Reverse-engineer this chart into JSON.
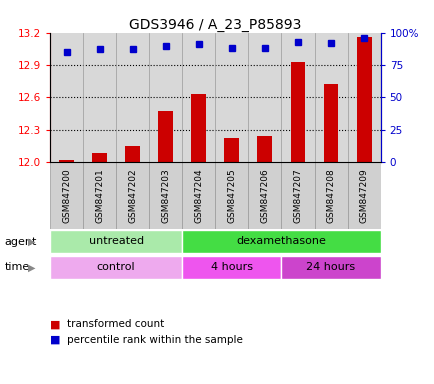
{
  "title": "GDS3946 / A_23_P85893",
  "samples": [
    "GSM847200",
    "GSM847201",
    "GSM847202",
    "GSM847203",
    "GSM847204",
    "GSM847205",
    "GSM847206",
    "GSM847207",
    "GSM847208",
    "GSM847209"
  ],
  "bar_values": [
    12.02,
    12.08,
    12.15,
    12.47,
    12.63,
    12.22,
    12.24,
    12.93,
    12.72,
    13.16
  ],
  "percentile_values": [
    85,
    87,
    87,
    90,
    91,
    88,
    88,
    93,
    92,
    96
  ],
  "bar_color": "#cc0000",
  "percentile_color": "#0000cc",
  "ylim_left": [
    12.0,
    13.2
  ],
  "ylim_right": [
    0,
    100
  ],
  "yticks_left": [
    12.0,
    12.3,
    12.6,
    12.9,
    13.2
  ],
  "yticks_right": [
    0,
    25,
    50,
    75,
    100
  ],
  "yticklabels_right": [
    "0",
    "25",
    "50",
    "75",
    "100%"
  ],
  "agent_groups": [
    {
      "label": "untreated",
      "start": 0,
      "end": 4,
      "color": "#aaeaaa"
    },
    {
      "label": "dexamethasone",
      "start": 4,
      "end": 10,
      "color": "#44dd44"
    }
  ],
  "time_groups": [
    {
      "label": "control",
      "start": 0,
      "end": 4,
      "color": "#eeaaee"
    },
    {
      "label": "4 hours",
      "start": 4,
      "end": 7,
      "color": "#ee55ee"
    },
    {
      "label": "24 hours",
      "start": 7,
      "end": 10,
      "color": "#cc44cc"
    }
  ],
  "legend_bar_label": "transformed count",
  "legend_pct_label": "percentile rank within the sample",
  "bar_width": 0.45,
  "plot_bg_color": "#d8d8d8",
  "sample_box_color": "#d0d0d0",
  "background_color": "#ffffff"
}
